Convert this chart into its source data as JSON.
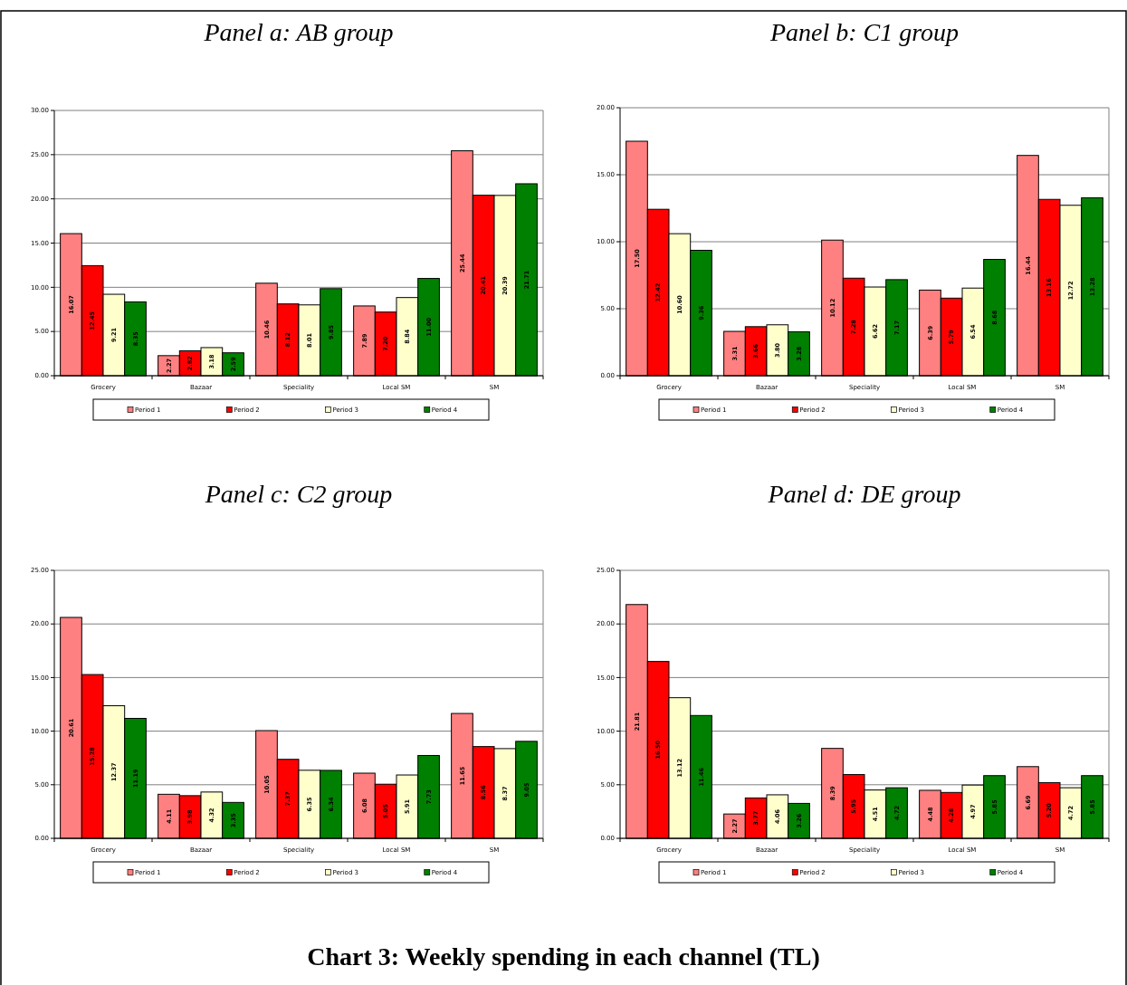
{
  "chart_data": [
    {
      "type": "bar",
      "title": "Panel a: AB group",
      "categories": [
        "Grocery",
        "Bazaar",
        "Speciality",
        "Local SM",
        "SM"
      ],
      "ylim": [
        0,
        30
      ],
      "yticks": [
        {
          "value": 0,
          "label": "0.00"
        },
        {
          "value": 5,
          "label": "5.00"
        },
        {
          "value": 10,
          "label": "10.00"
        },
        {
          "value": 15,
          "label": "15.00"
        },
        {
          "value": 20,
          "label": "20.00"
        },
        {
          "value": 25,
          "label": "25.00"
        },
        {
          "value": 30,
          "label": "30.00"
        }
      ],
      "grid": "y",
      "legend": "bottom",
      "series": [
        {
          "name": "Period 1",
          "color": "#ff8080",
          "values": [
            16.07,
            2.27,
            10.46,
            7.89,
            25.44
          ],
          "value_labels": [
            "16.07",
            "2.27",
            "10.46",
            "7.89",
            "25.44"
          ]
        },
        {
          "name": "Period 2",
          "color": "#ff0000",
          "values": [
            12.45,
            2.82,
            8.12,
            7.2,
            20.41
          ],
          "value_labels": [
            "12.45",
            "2.82",
            "8.12",
            "7.20",
            "20.41"
          ]
        },
        {
          "name": "Period 3",
          "color": "#ffffcc",
          "values": [
            9.21,
            3.18,
            8.01,
            8.84,
            20.39
          ],
          "value_labels": [
            "9.21",
            "3.18",
            "8.01",
            "8.84",
            "20.39"
          ]
        },
        {
          "name": "Period 4",
          "color": "#008000",
          "values": [
            8.35,
            2.59,
            9.85,
            11.0,
            21.71
          ],
          "value_labels": [
            "8.35",
            "2.59",
            "9.85",
            "11.00",
            "21.71"
          ]
        }
      ]
    },
    {
      "type": "bar",
      "title": "Panel b: C1 group",
      "categories": [
        "Grocery",
        "Bazaar",
        "Speciality",
        "Local SM",
        "SM"
      ],
      "ylim": [
        0,
        20
      ],
      "yticks": [
        {
          "value": 0,
          "label": "0.00"
        },
        {
          "value": 5,
          "label": "5.00"
        },
        {
          "value": 10,
          "label": "10.00"
        },
        {
          "value": 15,
          "label": "15.00"
        },
        {
          "value": 20,
          "label": "20.00"
        }
      ],
      "grid": "y",
      "legend": "bottom",
      "series": [
        {
          "name": "Period 1",
          "color": "#ff8080",
          "values": [
            17.5,
            3.31,
            10.12,
            6.39,
            16.44
          ],
          "value_labels": [
            "17.50",
            "3.31",
            "10.12",
            "6.39",
            "16.44"
          ]
        },
        {
          "name": "Period 2",
          "color": "#ff0000",
          "values": [
            12.42,
            3.66,
            7.28,
            5.79,
            13.16
          ],
          "value_labels": [
            "12.42",
            "3.66",
            "7.28",
            "5.79",
            "13.16"
          ]
        },
        {
          "name": "Period 3",
          "color": "#ffffcc",
          "values": [
            10.6,
            3.8,
            6.62,
            6.54,
            12.72
          ],
          "value_labels": [
            "10.60",
            "3.80",
            "6.62",
            "6.54",
            "12.72"
          ]
        },
        {
          "name": "Period 4",
          "color": "#008000",
          "values": [
            9.36,
            3.28,
            7.17,
            8.68,
            13.28
          ],
          "value_labels": [
            "9.36",
            "3.28",
            "7.17",
            "8.68",
            "13.28"
          ]
        }
      ]
    },
    {
      "type": "bar",
      "title": "Panel c: C2 group",
      "categories": [
        "Grocery",
        "Bazaar",
        "Speciality",
        "Local SM",
        "SM"
      ],
      "ylim": [
        0,
        25
      ],
      "yticks": [
        {
          "value": 0,
          "label": "0.00"
        },
        {
          "value": 5,
          "label": "5.00"
        },
        {
          "value": 10,
          "label": "10.00"
        },
        {
          "value": 15,
          "label": "15.00"
        },
        {
          "value": 20,
          "label": "20.00"
        },
        {
          "value": 25,
          "label": "25.00"
        }
      ],
      "grid": "y",
      "legend": "bottom",
      "series": [
        {
          "name": "Period 1",
          "color": "#ff8080",
          "values": [
            20.61,
            4.11,
            10.05,
            6.08,
            11.65
          ],
          "value_labels": [
            "20.61",
            "4.11",
            "10.05",
            "6.08",
            "11.65"
          ]
        },
        {
          "name": "Period 2",
          "color": "#ff0000",
          "values": [
            15.28,
            3.98,
            7.37,
            5.05,
            8.56
          ],
          "value_labels": [
            "15.28",
            "3.98",
            "7.37",
            "5.05",
            "8.56"
          ]
        },
        {
          "name": "Period 3",
          "color": "#ffffcc",
          "values": [
            12.37,
            4.32,
            6.35,
            5.91,
            8.37
          ],
          "value_labels": [
            "12.37",
            "4.32",
            "6.35",
            "5.91",
            "8.37"
          ]
        },
        {
          "name": "Period 4",
          "color": "#008000",
          "values": [
            11.19,
            3.35,
            6.34,
            7.73,
            9.05
          ],
          "value_labels": [
            "11.19",
            "3.35",
            "6.34",
            "7.73",
            "9.05"
          ]
        }
      ]
    },
    {
      "type": "bar",
      "title": "Panel d: DE group",
      "categories": [
        "Grocery",
        "Bazaar",
        "Speciality",
        "Local SM",
        "SM"
      ],
      "ylim": [
        0,
        25
      ],
      "yticks": [
        {
          "value": 0,
          "label": "0.00"
        },
        {
          "value": 5,
          "label": "5.00"
        },
        {
          "value": 10,
          "label": "10.00"
        },
        {
          "value": 15,
          "label": "15.00"
        },
        {
          "value": 20,
          "label": "20.00"
        },
        {
          "value": 25,
          "label": "25.00"
        }
      ],
      "grid": "y",
      "legend": "bottom",
      "annotations": [
        "Chart 3: Weekly spending in each channel (TL)"
      ],
      "series": [
        {
          "name": "Period 1",
          "color": "#ff8080",
          "values": [
            21.81,
            2.27,
            8.39,
            4.48,
            6.69
          ],
          "value_labels": [
            "21.81",
            "2.27",
            "8.39",
            "4.48",
            "6.69"
          ]
        },
        {
          "name": "Period 2",
          "color": "#ff0000",
          "values": [
            16.5,
            3.77,
            5.95,
            4.28,
            5.2
          ],
          "value_labels": [
            "16.50",
            "3.77",
            "5.95",
            "4.28",
            "5.20"
          ]
        },
        {
          "name": "Period 3",
          "color": "#ffffcc",
          "values": [
            13.12,
            4.06,
            4.51,
            4.97,
            4.72
          ],
          "value_labels": [
            "13.12",
            "4.06",
            "4.51",
            "4.97",
            "4.72"
          ]
        },
        {
          "name": "Period 4",
          "color": "#008000",
          "values": [
            11.46,
            3.26,
            4.72,
            5.85,
            5.85
          ],
          "value_labels": [
            "11.46",
            "3.26",
            "4.72",
            "5.85",
            "5.85"
          ]
        }
      ]
    }
  ]
}
